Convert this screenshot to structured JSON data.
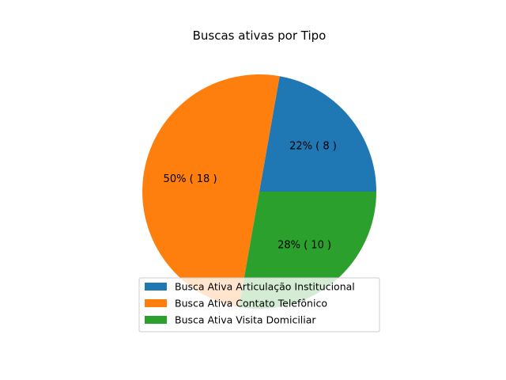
{
  "chart_data": {
    "type": "pie",
    "title": "Buscas ativas por Tipo",
    "categories": [
      "Busca Ativa Articulação Institucional",
      "Busca Ativa Contato Telefônico",
      "Busca Ativa Visita Domiciliar"
    ],
    "values": [
      8,
      18,
      10
    ],
    "percent_labels": [
      "22% ( 8 )",
      "50% ( 18 )",
      "28% ( 10 )"
    ],
    "colors": [
      "#1f77b4",
      "#ff7f0e",
      "#2ca02c"
    ],
    "legend_placement": "lower-center",
    "start_angle_deg": 0,
    "direction": "counterclockwise"
  }
}
